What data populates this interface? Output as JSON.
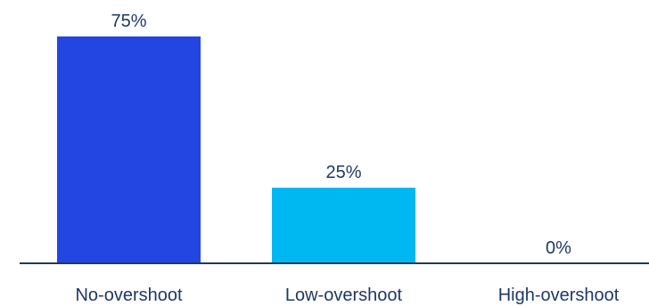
{
  "chart_data": {
    "type": "bar",
    "title": "",
    "xlabel": "",
    "ylabel": "",
    "categories": [
      "No-overshoot",
      "Low-overshoot",
      "High-overshoot"
    ],
    "values": [
      75,
      25,
      0
    ],
    "value_labels": [
      "75%",
      "25%",
      "0%"
    ],
    "ylim": [
      0,
      100
    ],
    "grid": false,
    "legend": "none",
    "colors": {
      "bars": [
        "#2346e3",
        "#00b8f1",
        "#00b8f1"
      ],
      "axis": "#1f3864",
      "text": "#1f3864"
    }
  }
}
